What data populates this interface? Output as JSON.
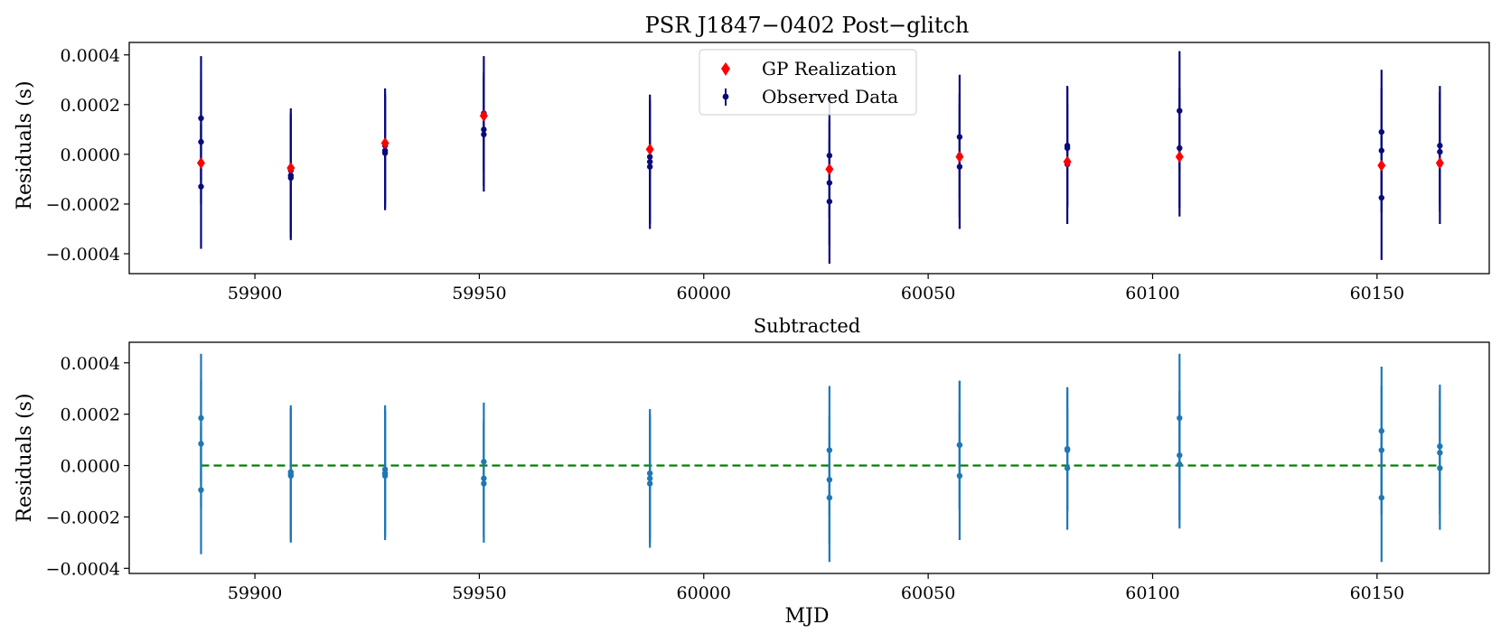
{
  "chart_data": [
    {
      "type": "scatter",
      "title": "PSR J1847−0402 Post−glitch",
      "xlabel": "",
      "ylabel": "Residuals (s)",
      "xlim": [
        59872,
        60175
      ],
      "ylim": [
        -0.00048,
        0.00045
      ],
      "xticks": [
        59900,
        59950,
        60000,
        60050,
        60100,
        60150
      ],
      "xtick_labels": [
        "59900",
        "59950",
        "60000",
        "60050",
        "60100",
        "60150"
      ],
      "yticks": [
        0.0004,
        0.0002,
        0.0,
        -0.0002,
        -0.0004
      ],
      "ytick_labels": [
        "0.0004",
        "0.0002",
        "0.0000",
        "−0.0002",
        "−0.0004"
      ],
      "legend": {
        "position": "top-center",
        "entries": [
          "GP Realization",
          "Observed Data"
        ]
      },
      "series": [
        {
          "name": "Observed Data",
          "color": "#0a0a7a",
          "marker": "point",
          "points": [
            {
              "x": 59888,
              "y": 0.000145,
              "err": 0.00025
            },
            {
              "x": 59888,
              "y": 5e-05,
              "err": 0.00025
            },
            {
              "x": 59888,
              "y": -0.00013,
              "err": 0.00025
            },
            {
              "x": 59908,
              "y": -6.5e-05,
              "err": 0.00025
            },
            {
              "x": 59908,
              "y": -8.5e-05,
              "err": 0.00025
            },
            {
              "x": 59908,
              "y": -9.5e-05,
              "err": 0.00025
            },
            {
              "x": 59929,
              "y": 3.5e-05,
              "err": 0.00023
            },
            {
              "x": 59929,
              "y": 1.5e-05,
              "err": 0.00023
            },
            {
              "x": 59929,
              "y": 5e-06,
              "err": 0.00023
            },
            {
              "x": 59951,
              "y": 0.000165,
              "err": 0.00023
            },
            {
              "x": 59951,
              "y": 0.0001,
              "err": 0.00023
            },
            {
              "x": 59951,
              "y": 8e-05,
              "err": 0.00023
            },
            {
              "x": 59988,
              "y": -1e-05,
              "err": 0.00025
            },
            {
              "x": 59988,
              "y": -3e-05,
              "err": 0.00025
            },
            {
              "x": 59988,
              "y": -5e-05,
              "err": 0.00025
            },
            {
              "x": 60028,
              "y": -5e-06,
              "err": 0.00025
            },
            {
              "x": 60028,
              "y": -0.000115,
              "err": 0.00025
            },
            {
              "x": 60028,
              "y": -0.00019,
              "err": 0.00025
            },
            {
              "x": 60057,
              "y": 7e-05,
              "err": 0.00025
            },
            {
              "x": 60057,
              "y": -5e-06,
              "err": 0.00025
            },
            {
              "x": 60057,
              "y": -5e-05,
              "err": 0.00025
            },
            {
              "x": 60081,
              "y": 3.5e-05,
              "err": 0.00024
            },
            {
              "x": 60081,
              "y": 2.5e-05,
              "err": 0.00024
            },
            {
              "x": 60081,
              "y": -4e-05,
              "err": 0.00024
            },
            {
              "x": 60106,
              "y": 0.000175,
              "err": 0.00024
            },
            {
              "x": 60106,
              "y": 2.5e-05,
              "err": 0.00024
            },
            {
              "x": 60106,
              "y": -1e-05,
              "err": 0.00024
            },
            {
              "x": 60151,
              "y": 9e-05,
              "err": 0.00025
            },
            {
              "x": 60151,
              "y": 1.5e-05,
              "err": 0.00025
            },
            {
              "x": 60151,
              "y": -0.000175,
              "err": 0.00025
            },
            {
              "x": 60164,
              "y": 3.5e-05,
              "err": 0.00024
            },
            {
              "x": 60164,
              "y": 1e-05,
              "err": 0.00024
            },
            {
              "x": 60164,
              "y": -4e-05,
              "err": 0.00024
            }
          ]
        },
        {
          "name": "GP Realization",
          "color": "#ff0000",
          "marker": "diamond",
          "points": [
            {
              "x": 59888,
              "y": -3.5e-05
            },
            {
              "x": 59908,
              "y": -5.5e-05
            },
            {
              "x": 59929,
              "y": 4.5e-05
            },
            {
              "x": 59951,
              "y": 0.000155
            },
            {
              "x": 59988,
              "y": 2e-05
            },
            {
              "x": 60028,
              "y": -6e-05
            },
            {
              "x": 60057,
              "y": -1e-05
            },
            {
              "x": 60081,
              "y": -3e-05
            },
            {
              "x": 60106,
              "y": -1e-05
            },
            {
              "x": 60151,
              "y": -4.5e-05
            },
            {
              "x": 60164,
              "y": -3.5e-05
            }
          ]
        }
      ]
    },
    {
      "type": "scatter",
      "title": "Subtracted",
      "xlabel": "MJD",
      "ylabel": "Residuals (s)",
      "xlim": [
        59872,
        60175
      ],
      "ylim": [
        -0.00042,
        0.00048
      ],
      "xticks": [
        59900,
        59950,
        60000,
        60050,
        60100,
        60150
      ],
      "xtick_labels": [
        "59900",
        "59950",
        "60000",
        "60050",
        "60100",
        "60150"
      ],
      "yticks": [
        0.0004,
        0.0002,
        0.0,
        -0.0002,
        -0.0004
      ],
      "ytick_labels": [
        "0.0004",
        "0.0002",
        "0.0000",
        "−0.0002",
        "−0.0004"
      ],
      "reference_line": {
        "y": 0.0,
        "x_from": 59888,
        "x_to": 60164,
        "color": "#008000",
        "style": "dashed"
      },
      "series": [
        {
          "name": "Subtracted",
          "color": "#1f77b4",
          "marker": "point",
          "points": [
            {
              "x": 59888,
              "y": 0.000185,
              "err": 0.00025
            },
            {
              "x": 59888,
              "y": 8.5e-05,
              "err": 0.00025
            },
            {
              "x": 59888,
              "y": -9.5e-05,
              "err": 0.00025
            },
            {
              "x": 59908,
              "y": -2.5e-05,
              "err": 0.00026
            },
            {
              "x": 59908,
              "y": -3.5e-05,
              "err": 0.00026
            },
            {
              "x": 59908,
              "y": -4e-05,
              "err": 0.00026
            },
            {
              "x": 59929,
              "y": -1.5e-05,
              "err": 0.00025
            },
            {
              "x": 59929,
              "y": -3e-05,
              "err": 0.00025
            },
            {
              "x": 59929,
              "y": -4e-05,
              "err": 0.00025
            },
            {
              "x": 59951,
              "y": 1.5e-05,
              "err": 0.00023
            },
            {
              "x": 59951,
              "y": -5e-05,
              "err": 0.00023
            },
            {
              "x": 59951,
              "y": -7e-05,
              "err": 0.00023
            },
            {
              "x": 59988,
              "y": -3e-05,
              "err": 0.00025
            },
            {
              "x": 59988,
              "y": -5e-05,
              "err": 0.00025
            },
            {
              "x": 59988,
              "y": -7e-05,
              "err": 0.00025
            },
            {
              "x": 60028,
              "y": 6e-05,
              "err": 0.00025
            },
            {
              "x": 60028,
              "y": -5.5e-05,
              "err": 0.00025
            },
            {
              "x": 60028,
              "y": -0.000125,
              "err": 0.00025
            },
            {
              "x": 60057,
              "y": 8e-05,
              "err": 0.00025
            },
            {
              "x": 60057,
              "y": 8e-05,
              "err": 0.00025
            },
            {
              "x": 60057,
              "y": -4e-05,
              "err": 0.00025
            },
            {
              "x": 60081,
              "y": 6.5e-05,
              "err": 0.00024
            },
            {
              "x": 60081,
              "y": 6e-05,
              "err": 0.00024
            },
            {
              "x": 60081,
              "y": -1e-05,
              "err": 0.00024
            },
            {
              "x": 60106,
              "y": 0.000185,
              "err": 0.00025
            },
            {
              "x": 60106,
              "y": 4e-05,
              "err": 0.00025
            },
            {
              "x": 60106,
              "y": 5e-06,
              "err": 0.00025
            },
            {
              "x": 60151,
              "y": 0.000135,
              "err": 0.00025
            },
            {
              "x": 60151,
              "y": 6e-05,
              "err": 0.00025
            },
            {
              "x": 60151,
              "y": -0.000125,
              "err": 0.00025
            },
            {
              "x": 60164,
              "y": 7.5e-05,
              "err": 0.00024
            },
            {
              "x": 60164,
              "y": 5e-05,
              "err": 0.00024
            },
            {
              "x": 60164,
              "y": -1e-05,
              "err": 0.00024
            }
          ]
        }
      ]
    }
  ]
}
